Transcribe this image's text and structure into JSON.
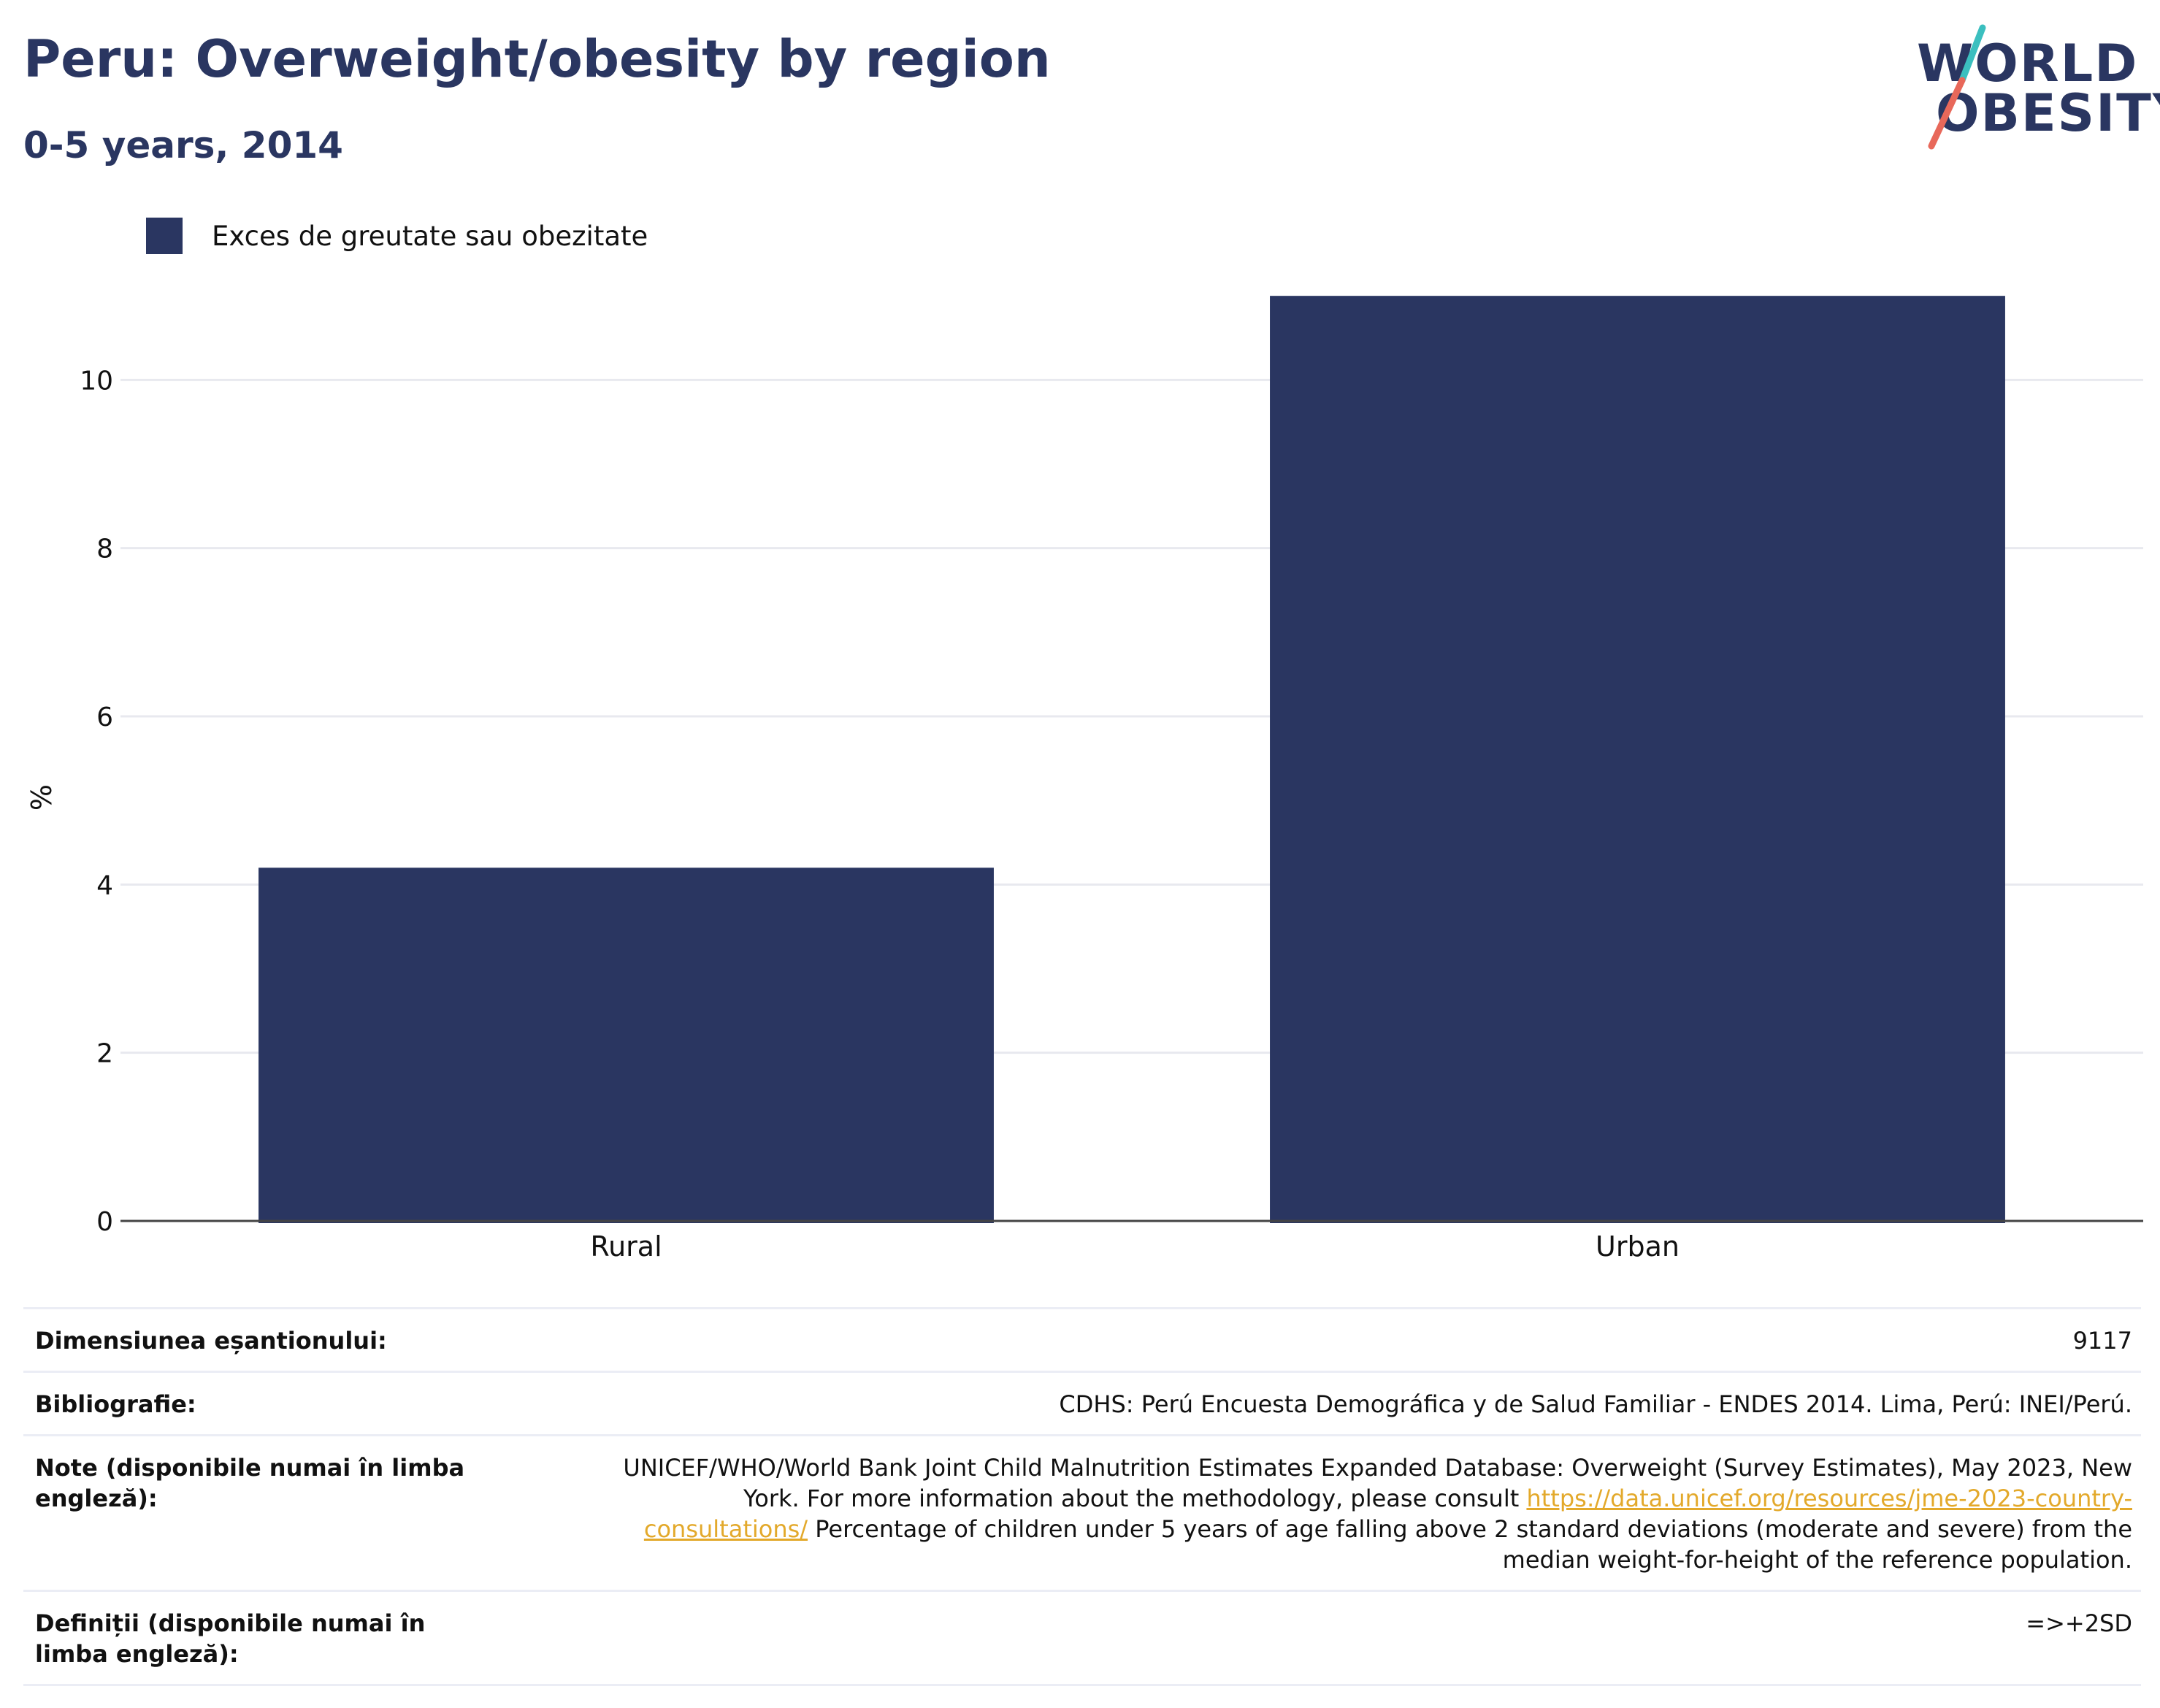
{
  "title": "Peru: Overweight/obesity by region",
  "subtitle": "0-5 years, 2014",
  "logo": {
    "line1": "WORLD",
    "line2": "OBESITY",
    "bar_color_1": "#3bbfbf",
    "bar_color_2": "#e8685a"
  },
  "legend": {
    "label": "Exces de greutate sau obezitate",
    "color": "#2a3661"
  },
  "chart_data": {
    "type": "bar",
    "categories": [
      "Rural",
      "Urban"
    ],
    "series": [
      {
        "name": "Exces de greutate sau obezitate",
        "values": [
          4.2,
          11.0
        ],
        "color": "#2a3661"
      }
    ],
    "ylabel": "%",
    "xlabel": "",
    "ylim": [
      0,
      12
    ],
    "yticks": [
      0,
      2,
      4,
      6,
      8,
      10
    ],
    "grid": true,
    "legend_position": "top-left"
  },
  "info": {
    "sample_size_label": "Dimensiunea eșantionului:",
    "sample_size_value": "9117",
    "bibliography_label": "Bibliografie:",
    "bibliography_value": "CDHS: Perú Encuesta Demográfica y de Salud Familiar - ENDES 2014. Lima, Perú: INEI/Perú.",
    "notes_label": "Note (disponibile numai în limba engleză):",
    "notes_text_1": "UNICEF/WHO/World Bank Joint Child Malnutrition Estimates Expanded Database: Overweight (Survey Estimates), May 2023, New York. For more information about the methodology, please consult",
    "notes_link": "https://data.unicef.org/resources/jme-2023-country-consultations/",
    "notes_text_2": "Percentage of children under 5 years of age falling above 2 standard deviations (moderate and severe) from the median weight-for-height of the reference population.",
    "definitions_label": "Definiții (disponibile numai în limba engleză):",
    "definitions_value": "=>+2SD"
  }
}
